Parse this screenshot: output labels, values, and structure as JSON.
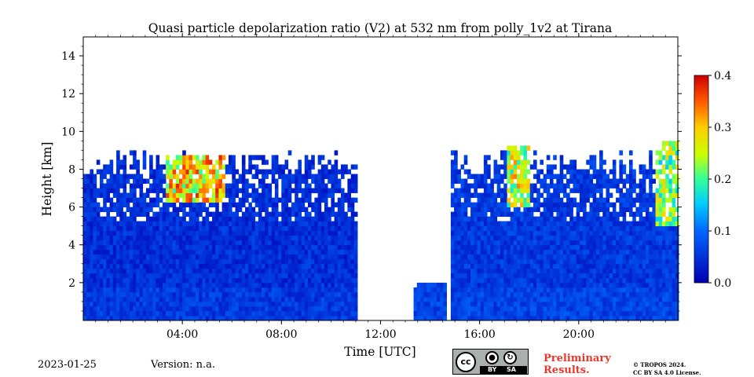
{
  "chart_data": {
    "type": "heatmap",
    "title": "Quasi particle depolarization ratio (V2) at 532 nm from polly_1v2 at Tirana",
    "xlabel": "Time [UTC]",
    "ylabel": "Height [km]",
    "xlim": [
      "00:00",
      "24:00"
    ],
    "ylim": [
      0,
      15
    ],
    "x_ticks": [
      "04:00",
      "08:00",
      "12:00",
      "16:00",
      "20:00"
    ],
    "y_ticks": [
      2,
      4,
      6,
      8,
      10,
      12,
      14
    ],
    "colorbar": {
      "label": "",
      "range": [
        0.0,
        0.4
      ],
      "ticks": [
        "0.0",
        "0.1",
        "0.2",
        "0.3",
        "0.4"
      ],
      "colormap": "jet"
    },
    "data_periods": [
      {
        "start": "00:00",
        "end": "11:00",
        "max_height_km": 9.0,
        "typical_value": 0.02
      },
      {
        "start": "13:20",
        "end": "14:40",
        "max_height_km": 2.0,
        "typical_value": 0.03
      },
      {
        "start": "14:50",
        "end": "24:00",
        "max_height_km": 9.0,
        "typical_value": 0.03
      }
    ],
    "features": [
      {
        "type": "dust layer",
        "start": "03:20",
        "end": "05:40",
        "bottom_km": 6.2,
        "top_km": 8.7,
        "value": 0.32
      },
      {
        "type": "ice cloud",
        "start": "17:00",
        "end": "18:00",
        "bottom_km": 6.0,
        "top_km": 9.2,
        "value": 0.28
      },
      {
        "type": "ice cloud",
        "start": "23:00",
        "end": "24:00",
        "bottom_km": 5.0,
        "top_km": 9.3,
        "value": 0.25
      }
    ]
  },
  "footer": {
    "date": "2023-01-25",
    "version": "Version: n.a.",
    "cc_badge": {
      "circle": "cc",
      "by": "BY",
      "sa": "SA"
    },
    "preliminary": "Preliminary Results.",
    "copyright_line1": "© TROPOS 2024.",
    "copyright_line2": "CC BY SA 4.0 License."
  }
}
